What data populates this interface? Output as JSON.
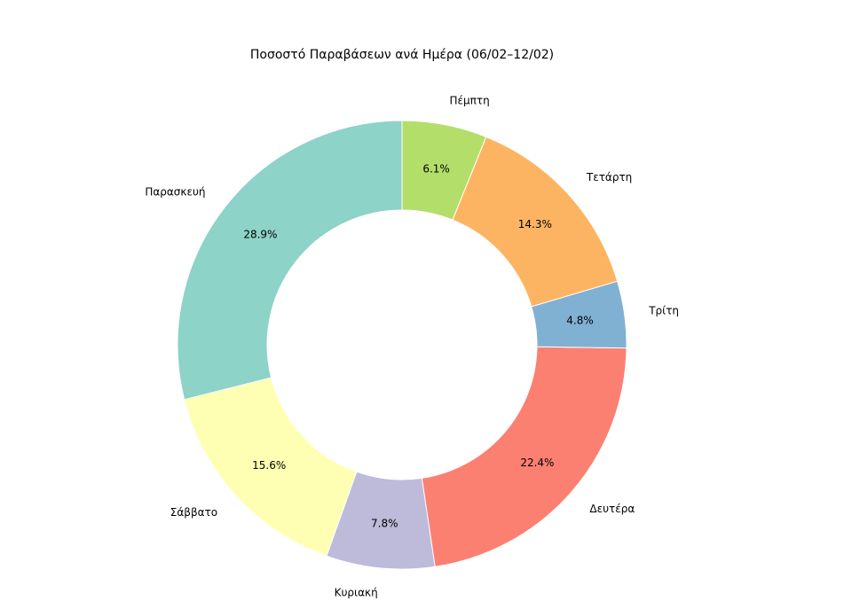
{
  "chart_data": {
    "type": "pie",
    "donut": true,
    "title": "Ποσοστό Παραβάσεων ανά Ημέρα (06/02–12/02)",
    "start_angle_deg": 90,
    "direction": "counterclockwise",
    "slices": [
      {
        "label": "Παρασκευή",
        "percent": 28.9,
        "percent_label": "28.9%",
        "color": "#8dd3c7"
      },
      {
        "label": "Σάββατο",
        "percent": 15.6,
        "percent_label": "15.6%",
        "color": "#ffffb3"
      },
      {
        "label": "Κυριακή",
        "percent": 7.8,
        "percent_label": "7.8%",
        "color": "#bebada"
      },
      {
        "label": "Δευτέρα",
        "percent": 22.4,
        "percent_label": "22.4%",
        "color": "#fb8072"
      },
      {
        "label": "Τρίτη",
        "percent": 4.8,
        "percent_label": "4.8%",
        "color": "#80b1d3"
      },
      {
        "label": "Τετάρτη",
        "percent": 14.3,
        "percent_label": "14.3%",
        "color": "#fdb462"
      },
      {
        "label": "Πέμπτη",
        "percent": 6.1,
        "percent_label": "6.1%",
        "color": "#b3de69"
      }
    ]
  }
}
